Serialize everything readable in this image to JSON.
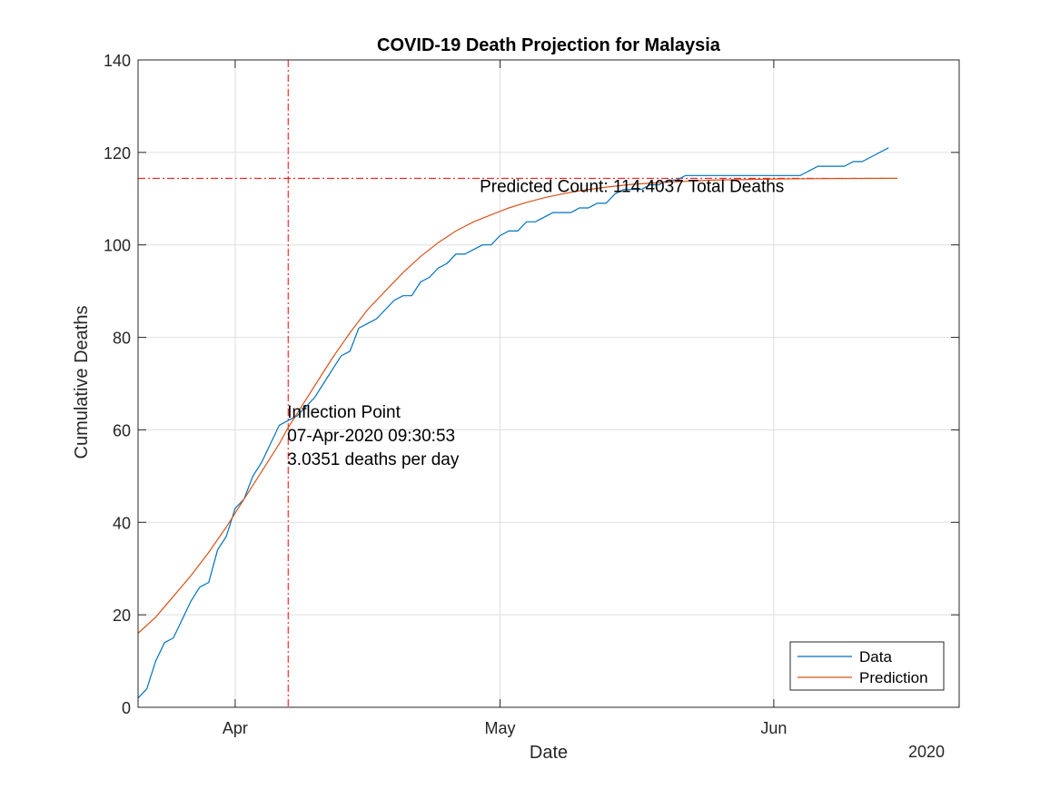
{
  "chart_data": {
    "type": "line",
    "title": "COVID-19 Death Projection for Malaysia",
    "xlabel": "Date",
    "ylabel": "Cumulative Deaths",
    "year_label": "2020",
    "x_range": [
      "2020-03-21",
      "2020-06-22"
    ],
    "ylim": [
      0,
      140
    ],
    "yticks": [
      0,
      20,
      40,
      60,
      80,
      100,
      120,
      140
    ],
    "xticks": [
      {
        "date": "2020-04-01",
        "label": "Apr"
      },
      {
        "date": "2020-05-01",
        "label": "May"
      },
      {
        "date": "2020-06-01",
        "label": "Jun"
      }
    ],
    "grid": true,
    "legend_position": "bottom-right",
    "series": [
      {
        "name": "Data",
        "color": "#0072BD",
        "points": [
          [
            "2020-03-21",
            2
          ],
          [
            "2020-03-22",
            4
          ],
          [
            "2020-03-23",
            10
          ],
          [
            "2020-03-24",
            14
          ],
          [
            "2020-03-25",
            15
          ],
          [
            "2020-03-26",
            19
          ],
          [
            "2020-03-27",
            23
          ],
          [
            "2020-03-28",
            26
          ],
          [
            "2020-03-29",
            27
          ],
          [
            "2020-03-30",
            34
          ],
          [
            "2020-03-31",
            37
          ],
          [
            "2020-04-01",
            43
          ],
          [
            "2020-04-02",
            45
          ],
          [
            "2020-04-03",
            50
          ],
          [
            "2020-04-04",
            53
          ],
          [
            "2020-04-05",
            57
          ],
          [
            "2020-04-06",
            61
          ],
          [
            "2020-04-07",
            62
          ],
          [
            "2020-04-08",
            63
          ],
          [
            "2020-04-09",
            65
          ],
          [
            "2020-04-10",
            67
          ],
          [
            "2020-04-11",
            70
          ],
          [
            "2020-04-12",
            73
          ],
          [
            "2020-04-13",
            76
          ],
          [
            "2020-04-14",
            77
          ],
          [
            "2020-04-15",
            82
          ],
          [
            "2020-04-16",
            83
          ],
          [
            "2020-04-17",
            84
          ],
          [
            "2020-04-18",
            86
          ],
          [
            "2020-04-19",
            88
          ],
          [
            "2020-04-20",
            89
          ],
          [
            "2020-04-21",
            89
          ],
          [
            "2020-04-22",
            92
          ],
          [
            "2020-04-23",
            93
          ],
          [
            "2020-04-24",
            95
          ],
          [
            "2020-04-25",
            96
          ],
          [
            "2020-04-26",
            98
          ],
          [
            "2020-04-27",
            98
          ],
          [
            "2020-04-28",
            99
          ],
          [
            "2020-04-29",
            100
          ],
          [
            "2020-04-30",
            100
          ],
          [
            "2020-05-01",
            102
          ],
          [
            "2020-05-02",
            103
          ],
          [
            "2020-05-03",
            103
          ],
          [
            "2020-05-04",
            105
          ],
          [
            "2020-05-05",
            105
          ],
          [
            "2020-05-06",
            106
          ],
          [
            "2020-05-07",
            107
          ],
          [
            "2020-05-08",
            107
          ],
          [
            "2020-05-09",
            107
          ],
          [
            "2020-05-10",
            108
          ],
          [
            "2020-05-11",
            108
          ],
          [
            "2020-05-12",
            109
          ],
          [
            "2020-05-13",
            109
          ],
          [
            "2020-05-14",
            111
          ],
          [
            "2020-05-15",
            112
          ],
          [
            "2020-05-16",
            112
          ],
          [
            "2020-05-17",
            112
          ],
          [
            "2020-05-18",
            113
          ],
          [
            "2020-05-19",
            113
          ],
          [
            "2020-05-20",
            114
          ],
          [
            "2020-05-21",
            114
          ],
          [
            "2020-05-22",
            115
          ],
          [
            "2020-05-23",
            115
          ],
          [
            "2020-05-24",
            115
          ],
          [
            "2020-05-25",
            115
          ],
          [
            "2020-05-26",
            115
          ],
          [
            "2020-05-27",
            115
          ],
          [
            "2020-05-28",
            115
          ],
          [
            "2020-05-29",
            115
          ],
          [
            "2020-05-30",
            115
          ],
          [
            "2020-05-31",
            115
          ],
          [
            "2020-06-01",
            115
          ],
          [
            "2020-06-02",
            115
          ],
          [
            "2020-06-03",
            115
          ],
          [
            "2020-06-04",
            115
          ],
          [
            "2020-06-05",
            116
          ],
          [
            "2020-06-06",
            117
          ],
          [
            "2020-06-07",
            117
          ],
          [
            "2020-06-08",
            117
          ],
          [
            "2020-06-09",
            117
          ],
          [
            "2020-06-10",
            118
          ],
          [
            "2020-06-11",
            118
          ],
          [
            "2020-06-12",
            119
          ],
          [
            "2020-06-13",
            120
          ],
          [
            "2020-06-14",
            121
          ]
        ]
      },
      {
        "name": "Prediction",
        "color": "#D95319",
        "points": [
          [
            "2020-03-21",
            16
          ],
          [
            "2020-03-23",
            19.5
          ],
          [
            "2020-03-25",
            24
          ],
          [
            "2020-03-27",
            28.5
          ],
          [
            "2020-03-29",
            33.5
          ],
          [
            "2020-03-31",
            39
          ],
          [
            "2020-04-02",
            45
          ],
          [
            "2020-04-04",
            51
          ],
          [
            "2020-04-06",
            57
          ],
          [
            "2020-04-07",
            60.5
          ],
          [
            "2020-04-08",
            63.5
          ],
          [
            "2020-04-10",
            69.5
          ],
          [
            "2020-04-12",
            75.5
          ],
          [
            "2020-04-14",
            81
          ],
          [
            "2020-04-16",
            86
          ],
          [
            "2020-04-18",
            90
          ],
          [
            "2020-04-20",
            94
          ],
          [
            "2020-04-22",
            97.5
          ],
          [
            "2020-04-24",
            100.5
          ],
          [
            "2020-04-26",
            103
          ],
          [
            "2020-04-28",
            105
          ],
          [
            "2020-04-30",
            106.5
          ],
          [
            "2020-05-02",
            108
          ],
          [
            "2020-05-04",
            109.2
          ],
          [
            "2020-05-06",
            110.2
          ],
          [
            "2020-05-08",
            111
          ],
          [
            "2020-05-10",
            111.7
          ],
          [
            "2020-05-13",
            112.5
          ],
          [
            "2020-05-16",
            113.1
          ],
          [
            "2020-05-20",
            113.6
          ],
          [
            "2020-05-25",
            114
          ],
          [
            "2020-06-01",
            114.25
          ],
          [
            "2020-06-08",
            114.35
          ],
          [
            "2020-06-15",
            114.4
          ]
        ]
      }
    ],
    "reference_lines": [
      {
        "orientation": "horizontal",
        "y": 114.4037,
        "color": "#FF0000",
        "style": "dash-dot",
        "from": "2020-03-21",
        "to": "2020-06-15"
      },
      {
        "orientation": "vertical",
        "x": "2020-04-07",
        "color": "#FF0000",
        "style": "dash-dot"
      }
    ],
    "annotations": {
      "inflection": {
        "anchor_x": "2020-04-07",
        "anchor_y": 62,
        "lines": [
          "Inflection Point",
          "07-Apr-2020 09:30:53",
          "3.0351 deaths per day"
        ]
      },
      "predicted": {
        "anchor_x": "2020-04-29",
        "anchor_y": 111,
        "text": "Predicted Count: 114.4037 Total Deaths"
      }
    }
  }
}
